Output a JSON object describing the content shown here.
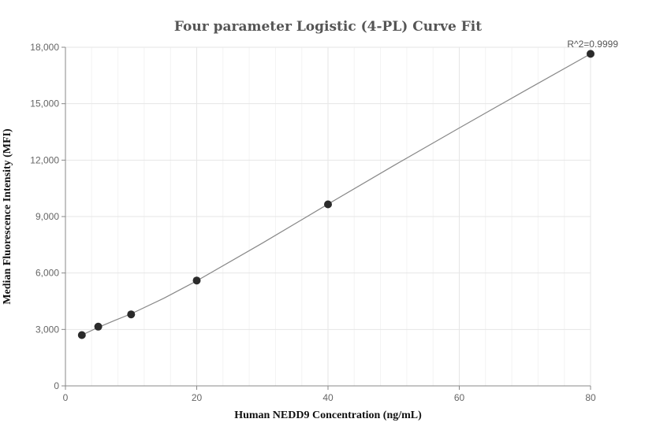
{
  "chart_data": {
    "type": "scatter",
    "title": "Four parameter Logistic (4-PL) Curve Fit",
    "xlabel": "Human NEDD9 Concentration (ng/mL)",
    "ylabel": "Median Fluorescence Intensity (MFI)",
    "xlim": [
      0,
      80
    ],
    "ylim": [
      0,
      18000
    ],
    "x_ticks": [
      0,
      20,
      40,
      60,
      80
    ],
    "y_ticks": [
      0,
      3000,
      6000,
      9000,
      12000,
      15000,
      18000
    ],
    "x_tick_labels": [
      "0",
      "20",
      "40",
      "60",
      "80"
    ],
    "y_tick_labels": [
      "0",
      "3,000",
      "6,000",
      "9,000",
      "12,000",
      "15,000",
      "18,000"
    ],
    "grid": true,
    "series": [
      {
        "points": [
          {
            "x": 2.5,
            "y": 2700
          },
          {
            "x": 5,
            "y": 3150
          },
          {
            "x": 10,
            "y": 3800
          },
          {
            "x": 20,
            "y": 5600
          },
          {
            "x": 40,
            "y": 9650
          },
          {
            "x": 80,
            "y": 17650
          }
        ]
      }
    ],
    "fit_curve": {
      "x": [
        2.5,
        5,
        7.5,
        10,
        15,
        20,
        30,
        40,
        50,
        60,
        70,
        80
      ],
      "y": [
        2700,
        3110,
        3480,
        3830,
        4660,
        5580,
        7590,
        9660,
        11710,
        13710,
        15690,
        17650
      ]
    },
    "annotation": "R^2=0.9999",
    "colors": {
      "point": "#2b2b2b",
      "curve": "#888888",
      "axis": "#888888",
      "grid_major": "#e6e6e6",
      "grid_minor": "#f3f3f3",
      "title": "#555555"
    }
  }
}
